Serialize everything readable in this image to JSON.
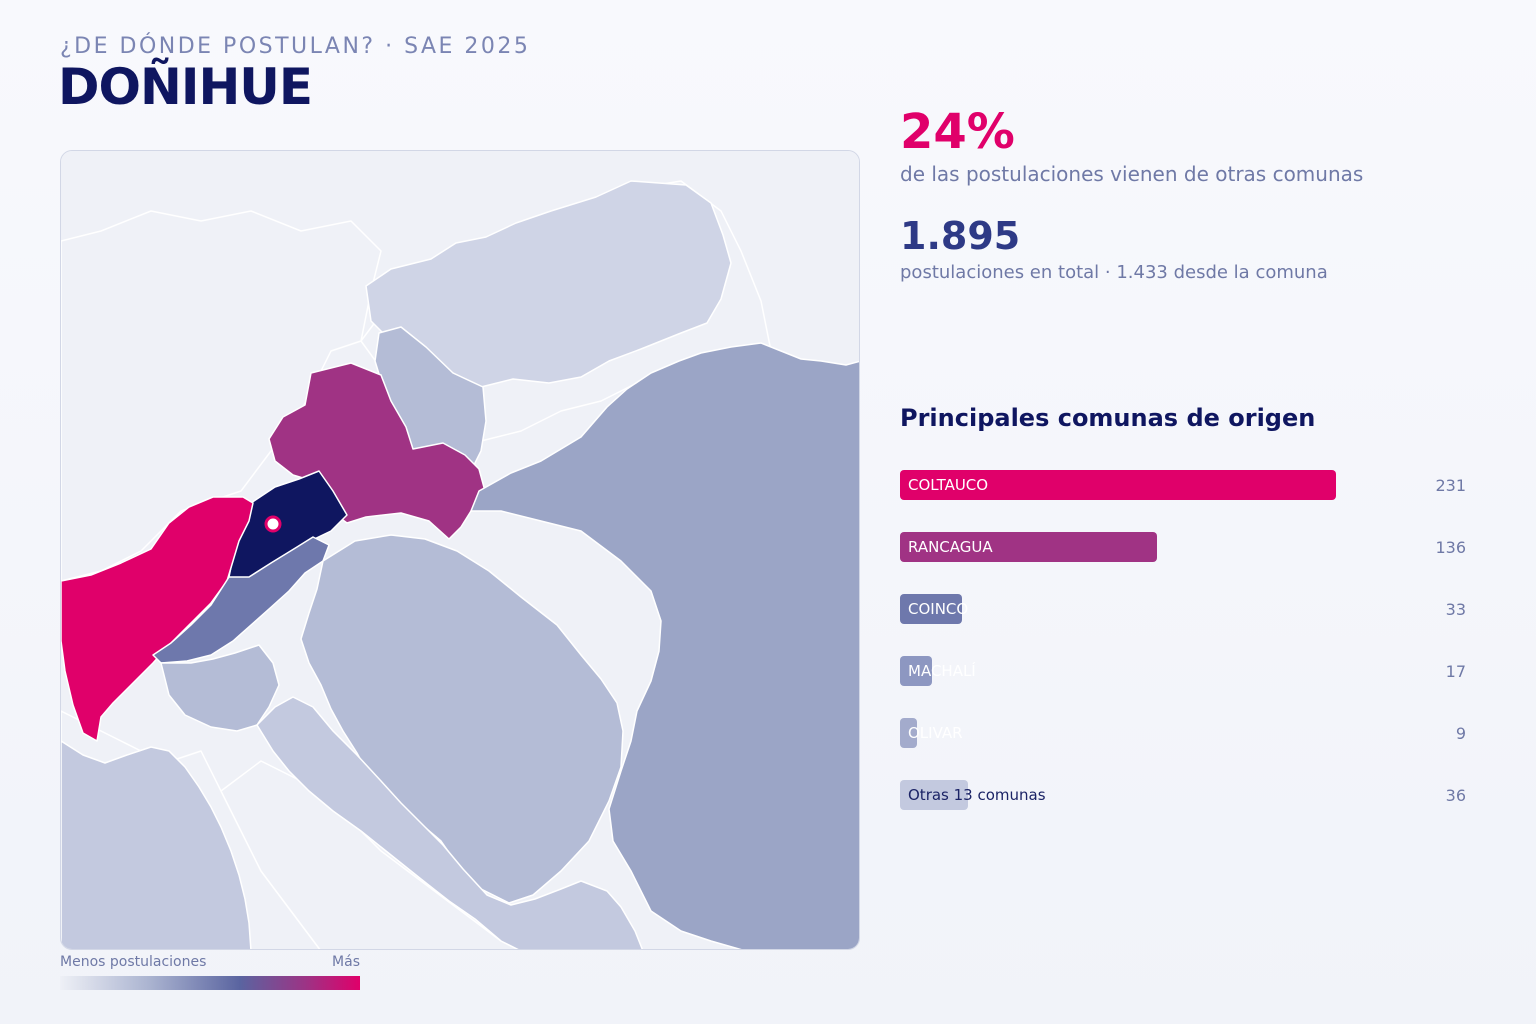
{
  "header": {
    "kicker": "¿DE DÓNDE POSTULAN? · SAE 2025",
    "title": "DOÑIHUE"
  },
  "stats": {
    "external_pct": "24%",
    "external_desc": "de las postulaciones vienen de otras comunas",
    "total": "1.895",
    "total_desc": "postulaciones en total · 1.433 desde la comuna"
  },
  "origins": {
    "title": "Principales comunas de origen",
    "max": 231,
    "items": [
      {
        "name": "COLTAUCO",
        "value": 231,
        "color": "#e0006a",
        "dark_label": false
      },
      {
        "name": "RANCAGUA",
        "value": 136,
        "color": "#a03384",
        "dark_label": false
      },
      {
        "name": "COINCO",
        "value": 33,
        "color": "#6e78ac",
        "dark_label": false
      },
      {
        "name": "MACHALÍ",
        "value": 17,
        "color": "#8d97c1",
        "dark_label": false
      },
      {
        "name": "OLIVAR",
        "value": 9,
        "color": "#a3abcc",
        "dark_label": false
      },
      {
        "name": "Otras 13 comunas",
        "value": 36,
        "color": "#c3c9df",
        "dark_label": true
      }
    ]
  },
  "legend": {
    "low": "Menos postulaciones",
    "high": "Más"
  },
  "map": {
    "colors": {
      "home": "#0f1660",
      "top1": "#e0006a",
      "top2": "#a03384",
      "mid": "#6e78ac",
      "low": "#9ba5c6",
      "lighter": "#b4bcd6",
      "lightest": "#cfd4e6",
      "background": "#eff1f7"
    }
  }
}
